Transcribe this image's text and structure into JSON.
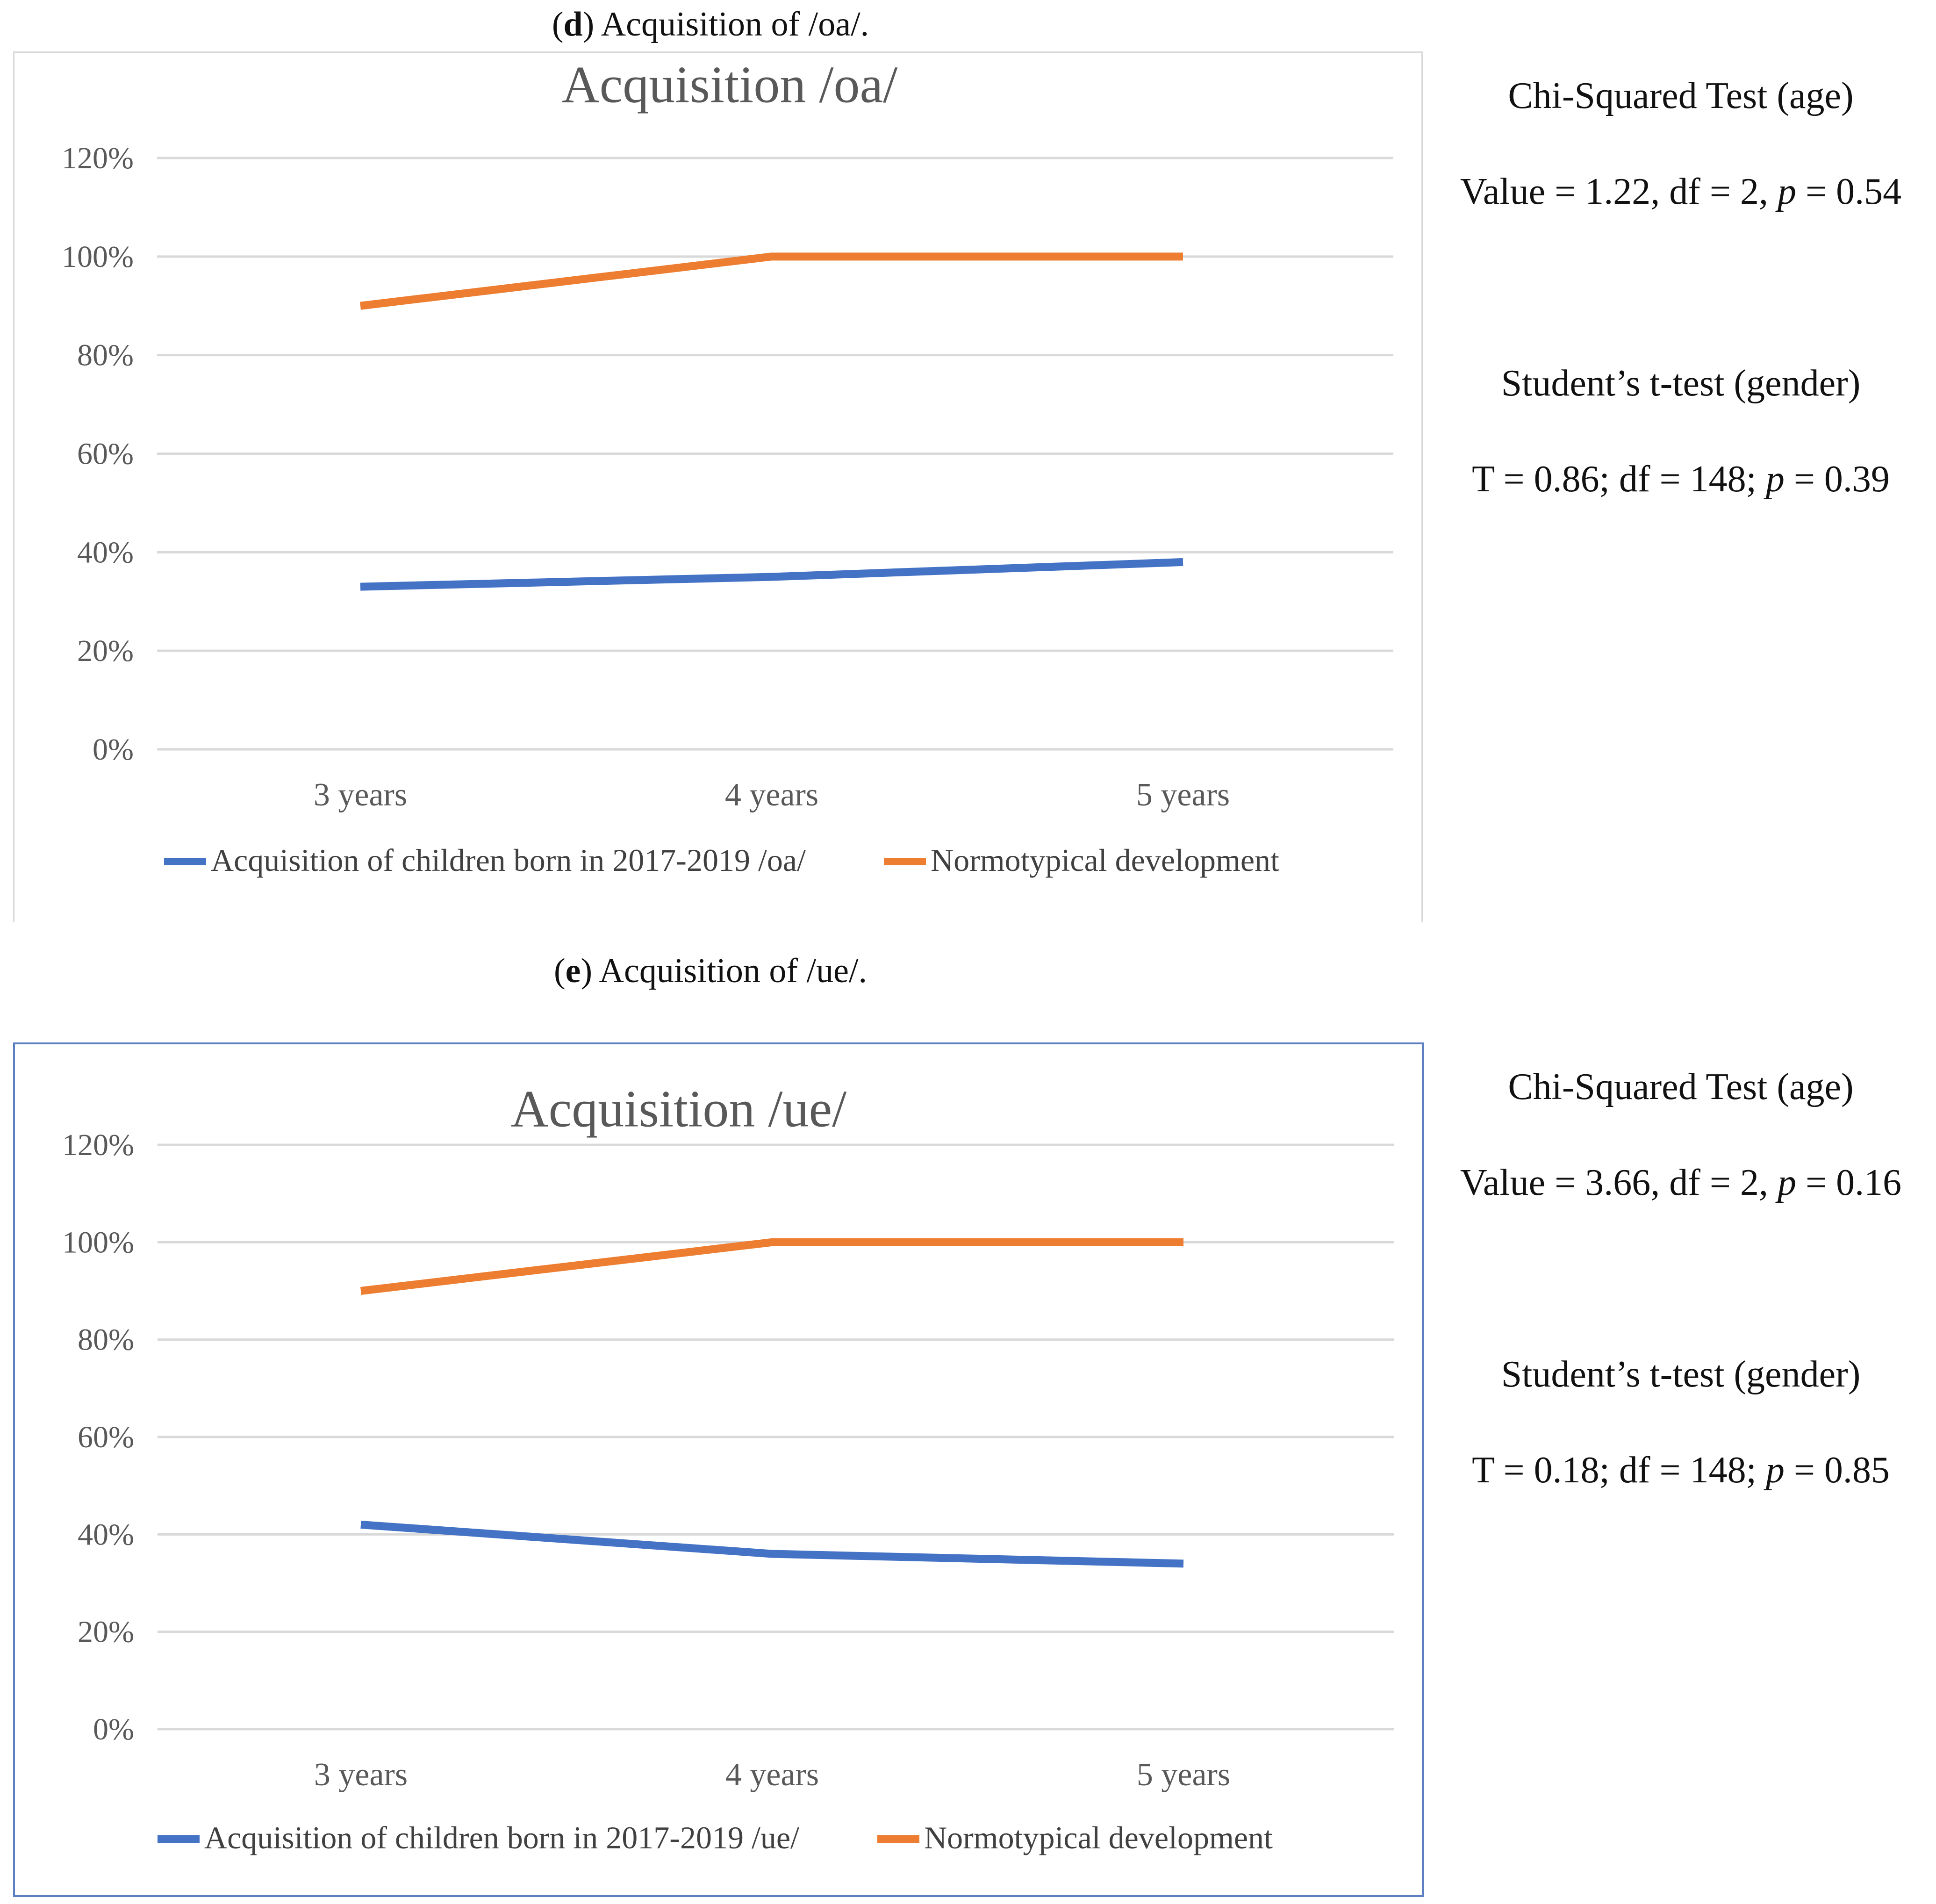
{
  "panels": [
    {
      "caption_letter": "d",
      "caption_text": ") Acquisition of /oa/.",
      "caption_open": "(",
      "stats": {
        "chi_title": "Chi-Squared Test (age)",
        "chi_value": "Value = 1.22, df = 2, ",
        "chi_p_label": "p",
        "chi_p_value": " = 0.54",
        "t_title": "Student’s t-test (gender)",
        "t_value": "T = 0.86; df = 148; ",
        "t_p_label": "p",
        "t_p_value": " = 0.39"
      }
    },
    {
      "caption_letter": "e",
      "caption_text": ") Acquisition of /ue/.",
      "caption_open": "(",
      "stats": {
        "chi_title": "Chi-Squared Test (age)",
        "chi_value": "Value = 3.66, df = 2, ",
        "chi_p_label": "p",
        "chi_p_value": " = 0.16",
        "t_title": "Student’s t-test (gender)",
        "t_value": "T = 0.18; df = 148; ",
        "t_p_label": "p",
        "t_p_value": " = 0.85"
      }
    }
  ],
  "chart_data": [
    {
      "type": "line",
      "title": "Acquisition /oa/",
      "categories": [
        "3 years",
        "4 years",
        "5 years"
      ],
      "y_ticks": [
        "0%",
        "20%",
        "40%",
        "60%",
        "80%",
        "100%",
        "120%"
      ],
      "ylim": [
        0,
        120
      ],
      "grid": true,
      "legend": "bottom",
      "series": [
        {
          "name": "Acquisition of children born in 2017-2019  /oa/",
          "color": "#4472c4",
          "values": [
            33,
            35,
            38
          ]
        },
        {
          "name": "Normotypical development",
          "color": "#ed7d31",
          "values": [
            90,
            100,
            100
          ]
        }
      ]
    },
    {
      "type": "line",
      "title": "Acquisition /ue/",
      "categories": [
        "3 years",
        "4 years",
        "5 years"
      ],
      "y_ticks": [
        "0%",
        "20%",
        "40%",
        "60%",
        "80%",
        "100%",
        "120%"
      ],
      "ylim": [
        0,
        120
      ],
      "grid": true,
      "legend": "bottom",
      "series": [
        {
          "name": "Acquisition of children born in 2017-2019  /ue/",
          "color": "#4472c4",
          "values": [
            42,
            36,
            34
          ]
        },
        {
          "name": "Normotypical development",
          "color": "#ed7d31",
          "values": [
            90,
            100,
            100
          ]
        }
      ]
    }
  ]
}
